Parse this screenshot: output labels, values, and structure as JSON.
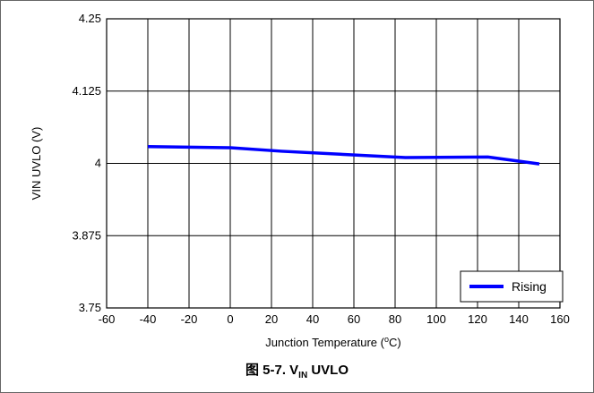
{
  "caption": {
    "prefix": "图 5-7. V",
    "subscript": "IN",
    "suffix": " UVLO"
  },
  "chart_data": {
    "type": "line",
    "title": "",
    "xlabel": "Junction Temperature (",
    "xlabel_sup": "o",
    "xlabel_suffix": "C)",
    "ylabel": "VIN UVLO (V)",
    "xlim": [
      -60,
      160
    ],
    "ylim": [
      3.75,
      4.25
    ],
    "x_ticks": [
      -60,
      -40,
      -20,
      0,
      20,
      40,
      60,
      80,
      100,
      120,
      140,
      160
    ],
    "x_tick_labels": [
      "-60",
      "-40",
      "-20",
      "0",
      "20",
      "40",
      "60",
      "80",
      "100",
      "120",
      "140",
      "160"
    ],
    "y_ticks": [
      3.75,
      3.875,
      4,
      4.125,
      4.25
    ],
    "y_tick_labels": [
      "3.75",
      "3.875",
      "4",
      "4.125",
      "4.25"
    ],
    "grid": true,
    "legend_position": "bottom-right",
    "series": [
      {
        "name": "Rising",
        "color": "#0000ff",
        "x": [
          -40,
          0,
          25,
          85,
          125,
          150
        ],
        "y": [
          4.029,
          4.027,
          4.021,
          4.01,
          4.011,
          3.999
        ]
      }
    ]
  }
}
